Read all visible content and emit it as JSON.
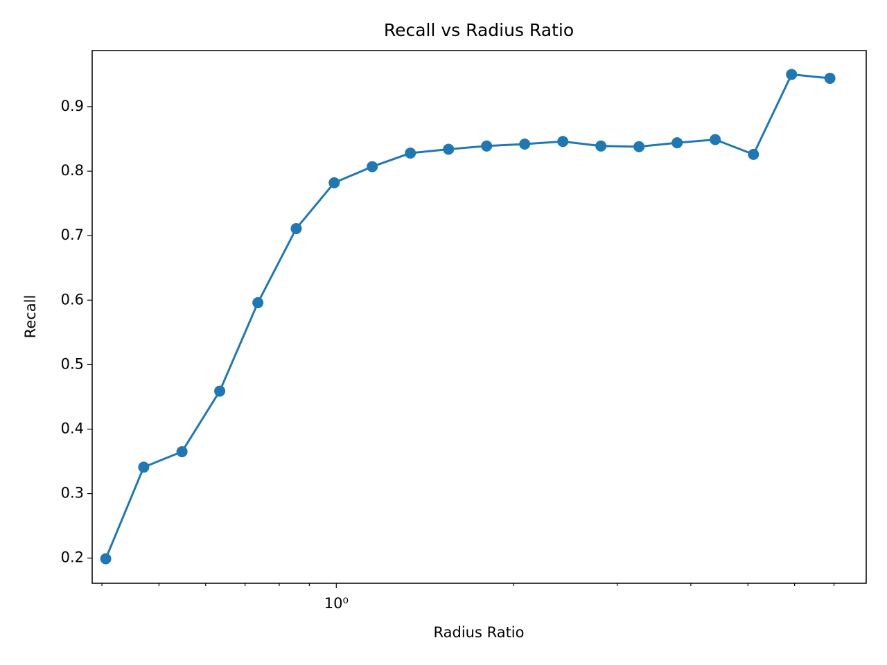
{
  "chart_data": {
    "type": "line",
    "title": "Recall vs Radius Ratio",
    "xlabel": "Radius Ratio",
    "ylabel": "Recall",
    "x": [
      0.406,
      0.471,
      0.547,
      0.634,
      0.736,
      0.855,
      0.992,
      1.151,
      1.336,
      1.551,
      1.8,
      2.089,
      2.425,
      2.814,
      3.266,
      3.791,
      4.4,
      5.11,
      5.93,
      6.89
    ],
    "series": [
      {
        "name": "Recall",
        "color": "#1f77b4",
        "values": [
          0.199,
          0.341,
          0.365,
          0.459,
          0.596,
          0.711,
          0.782,
          0.807,
          0.828,
          0.834,
          0.839,
          0.842,
          0.846,
          0.839,
          0.838,
          0.844,
          0.849,
          0.826,
          0.95,
          0.944
        ]
      }
    ],
    "xscale": "log",
    "xlim": [
      0.385,
      7.94
    ],
    "ylim": [
      0.161,
      0.987
    ],
    "xticks": [
      {
        "value": 1,
        "label": "10⁰"
      }
    ],
    "xminorticks": [
      0.4,
      0.5,
      0.6,
      0.7,
      0.8,
      0.9,
      2,
      3,
      4,
      5,
      6,
      7
    ],
    "yticks": [
      0.2,
      0.3,
      0.4,
      0.5,
      0.6,
      0.7,
      0.8,
      0.9
    ],
    "grid": false
  }
}
